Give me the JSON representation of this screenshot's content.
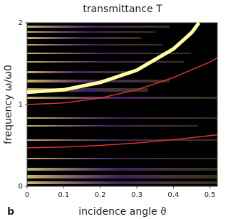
{
  "chart_data": {
    "type": "line",
    "title": "transmittance T",
    "xlabel": "incidence angle ϑ",
    "ylabel": "frequency ω/ω0",
    "panel_label": "b",
    "xlim": [
      0,
      0.52
    ],
    "ylim": [
      0,
      2
    ],
    "xticks": [
      0,
      0.1,
      0.2,
      0.3,
      0.4,
      0.5
    ],
    "yticks": [
      0,
      1,
      2
    ],
    "series": [
      {
        "color": "#ffffa0",
        "x": [
          0,
          0.1,
          0.2,
          0.3,
          0.4,
          0.45,
          0.47
        ],
        "values": [
          1.15,
          1.18,
          1.27,
          1.42,
          1.68,
          1.88,
          2.0
        ]
      },
      {
        "color": "#e03030",
        "x": [
          0,
          0.1,
          0.2,
          0.3,
          0.4,
          0.5,
          0.52
        ],
        "values": [
          1.0,
          1.02,
          1.08,
          1.18,
          1.33,
          1.52,
          1.57
        ]
      },
      {
        "color": "#e03030",
        "x": [
          0,
          0.1,
          0.2,
          0.3,
          0.4,
          0.5,
          0.52
        ],
        "values": [
          0.47,
          0.48,
          0.5,
          0.53,
          0.57,
          0.62,
          0.63
        ]
      }
    ]
  }
}
